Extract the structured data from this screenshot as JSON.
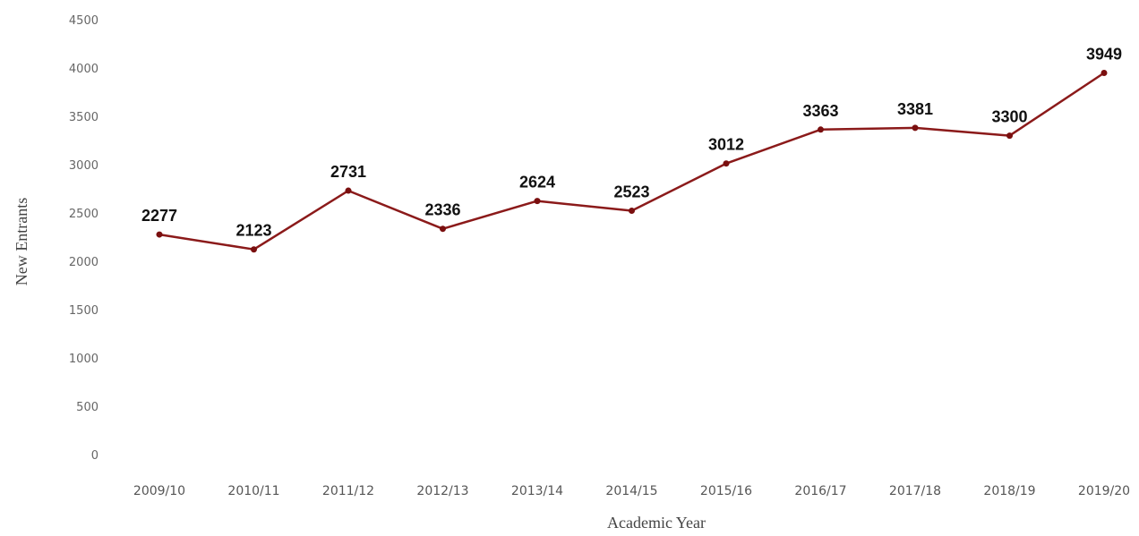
{
  "chart_data": {
    "type": "line",
    "title": "",
    "xlabel": "Academic Year",
    "ylabel": "New Entrants",
    "categories": [
      "2009/10",
      "2010/11",
      "2011/12",
      "2012/13",
      "2013/14",
      "2014/15",
      "2015/16",
      "2016/17",
      "2017/18",
      "2018/19",
      "2019/20"
    ],
    "series": [
      {
        "name": "",
        "values": [
          2277,
          2123,
          2731,
          2336,
          2624,
          2523,
          3012,
          3363,
          3381,
          3300,
          3949
        ]
      }
    ],
    "data_labels": [
      "2277",
      "2123",
      "2731",
      "2336",
      "2624",
      "2523",
      "3012",
      "3363",
      "3381",
      "3300",
      "3949"
    ],
    "ylim": [
      0,
      4500
    ],
    "yticks": [
      0,
      500,
      1000,
      1500,
      2000,
      2500,
      3000,
      3500,
      4000,
      4500
    ],
    "grid": false,
    "legend": "none",
    "line_color": "#8b1a1a",
    "marker_color": "#7a0f0f"
  }
}
